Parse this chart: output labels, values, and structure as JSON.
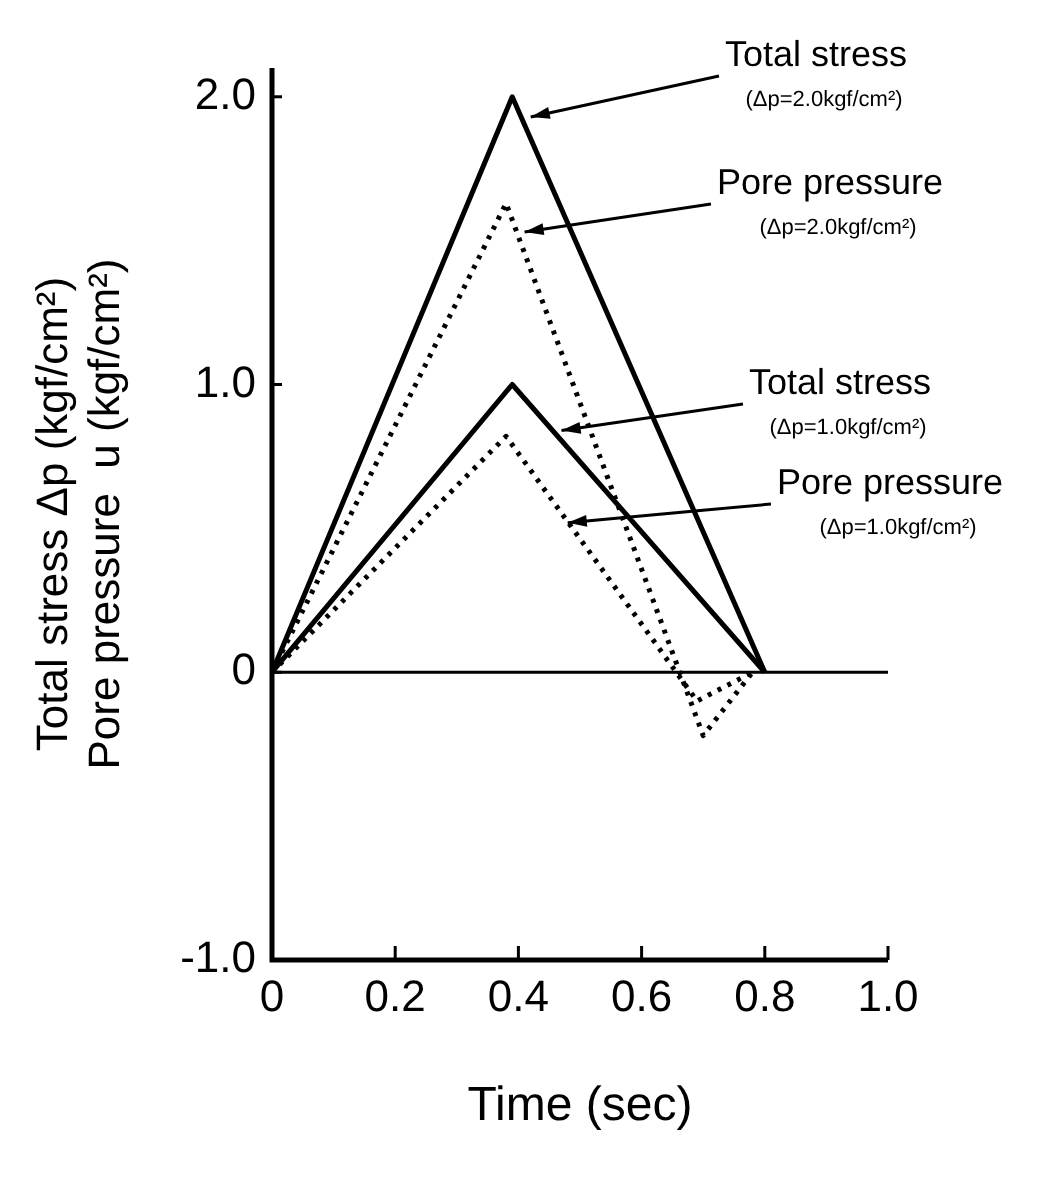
{
  "chart_data": {
    "type": "line",
    "xlabel": "Time (sec)",
    "ylabel": "Total stress Δp (kgf/cm²)\nPore pressure  u (kgf/cm²)",
    "xlim": [
      0,
      1.0
    ],
    "xticks": [
      0,
      0.2,
      0.4,
      0.6,
      0.8,
      {
        "value": 1.0,
        "label": "1.0"
      }
    ],
    "ylim": [
      -1.0,
      2.1
    ],
    "yticks": [
      {
        "value": -1.0,
        "label": "-1.0"
      },
      0,
      {
        "value": 1.0,
        "label": "1.0"
      },
      {
        "value": 2.0,
        "label": "2.0"
      }
    ],
    "grid": false,
    "legend": false,
    "marker": "none",
    "series": [
      {
        "color": "#000000",
        "line_style": "solid",
        "x": [
          0,
          0.39,
          0.8
        ],
        "values": [
          0,
          2.0,
          0
        ]
      },
      {
        "color": "#000000",
        "line_style": "dotted",
        "x": [
          0,
          0.38,
          0.7,
          0.78
        ],
        "values": [
          0,
          1.63,
          -0.22,
          0
        ]
      },
      {
        "color": "#000000",
        "line_style": "solid",
        "x": [
          0,
          0.39,
          0.8
        ],
        "values": [
          0,
          1.0,
          0
        ]
      },
      {
        "color": "#000000",
        "line_style": "dotted",
        "x": [
          0,
          0.38,
          0.69,
          0.78
        ],
        "values": [
          0,
          0.82,
          -0.1,
          0
        ]
      }
    ],
    "ref_lines": [
      {
        "axis": "y",
        "value": 0,
        "color": "#000000"
      }
    ],
    "annotations": [
      {
        "text": "Total stress\n(Δp=2.0kgf/cm²)",
        "x": 0.42,
        "y": 1.93
      },
      {
        "text": "Pore pressure\n(Δp=2.0kgf/cm²)",
        "x": 0.41,
        "y": 1.53
      },
      {
        "text": "Total stress\n(Δp=1.0kgf/cm²)",
        "x": 0.47,
        "y": 0.84
      },
      {
        "text": "Pore pressure\n(Δp=1.0kgf/cm²)",
        "x": 0.48,
        "y": 0.52
      }
    ]
  }
}
